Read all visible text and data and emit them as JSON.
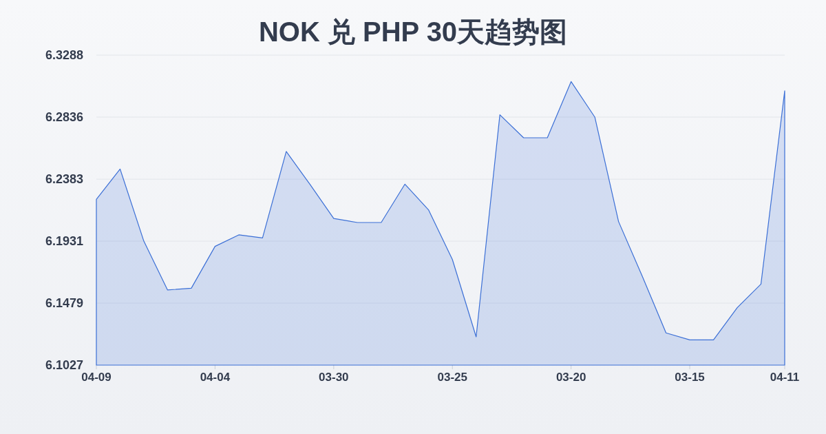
{
  "chart_data": {
    "type": "area",
    "title": "NOK 兑 PHP 30天趋势图",
    "categories": [
      "04-09",
      null,
      null,
      null,
      null,
      "04-04",
      null,
      null,
      null,
      null,
      "03-30",
      null,
      null,
      null,
      null,
      "03-25",
      null,
      null,
      null,
      null,
      "03-20",
      null,
      null,
      null,
      null,
      "03-15",
      null,
      null,
      null,
      "04-11"
    ],
    "values": [
      6.2236,
      6.2457,
      6.1931,
      6.1575,
      6.1588,
      6.1893,
      6.1977,
      6.1955,
      6.2585,
      6.2345,
      6.2097,
      6.2067,
      6.2067,
      6.2347,
      6.2158,
      6.1797,
      6.1233,
      6.2853,
      6.2685,
      6.2685,
      6.3095,
      6.2836,
      6.2074,
      6.1675,
      6.1262,
      6.1211,
      6.1211,
      6.1446,
      6.1618,
      6.3028
    ],
    "color": "#3b6fd6",
    "ylim": [
      6.1027,
      6.3288
    ],
    "yticks": [
      6.1027,
      6.1479,
      6.1931,
      6.2383,
      6.2836,
      6.3288
    ],
    "grid": "y"
  }
}
